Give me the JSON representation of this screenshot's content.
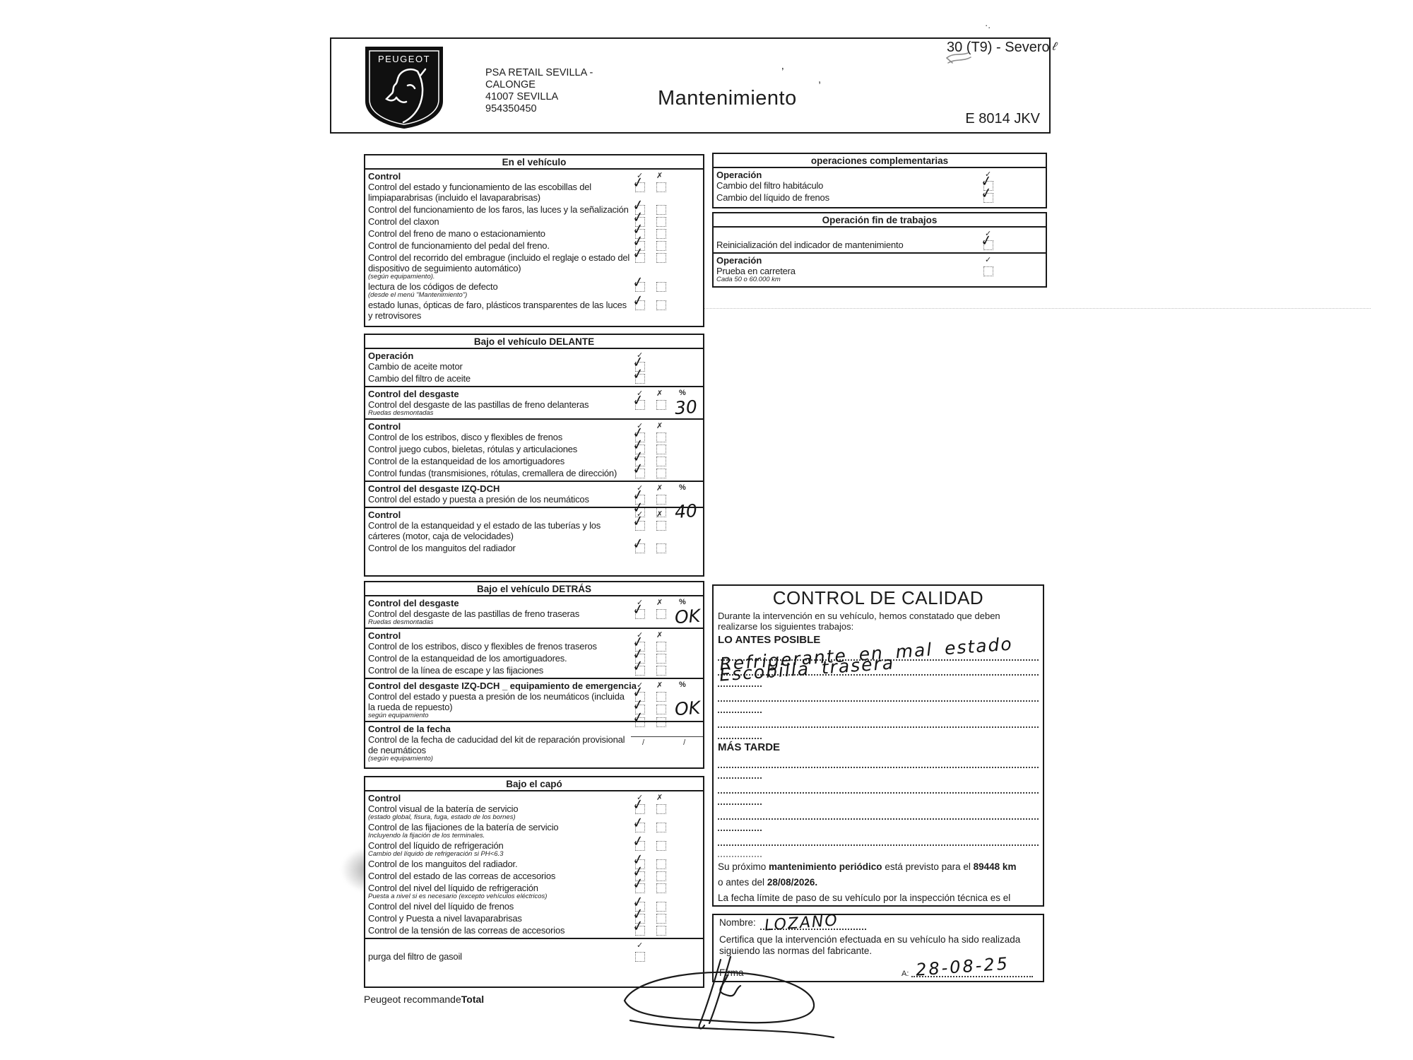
{
  "glyphs": {
    "check": "✓",
    "cross": "✗",
    "percent": "%",
    "mark": "✓"
  },
  "header": {
    "brand": "PEUGEOT",
    "dealer_lines": [
      "PSA RETAIL SEVILLA -",
      "CALONGE",
      "41007 SEVILLA",
      "954350450"
    ],
    "title": "Mantenimiento",
    "service_code": "30 (T9) - Severo",
    "plate": "E 8014 JKV"
  },
  "checklists": [
    {
      "title": "En el vehículo",
      "groups": [
        {
          "label": "Control",
          "cols": [
            "check",
            "cross"
          ],
          "rows": [
            {
              "text": "Control del estado y funcionamiento de las escobillas del limpiaparabrisas (incluido el lavaparabrisas)",
              "checks": [
                [
                  "checked",
                  "empty"
                ]
              ]
            },
            {
              "text": "Control del funcionamiento de los faros, las luces y la señalización",
              "checks": [
                [
                  "checked",
                  "empty"
                ]
              ]
            },
            {
              "text": "Control del claxon",
              "checks": [
                [
                  "checked",
                  "empty"
                ]
              ]
            },
            {
              "text": "Control del freno de mano o estacionamiento",
              "checks": [
                [
                  "checked",
                  "empty"
                ]
              ]
            },
            {
              "text": "Control de funcionamiento del pedal del freno.",
              "checks": [
                [
                  "checked",
                  "empty"
                ]
              ]
            },
            {
              "text": "Control del recorrido del embrague (incluido el reglaje o estado del dispositivo de seguimiento automático)",
              "note": "(según equipamiento).",
              "checks": [
                [
                  "checked",
                  "empty"
                ]
              ]
            },
            {
              "text": "lectura de los códigos de defecto",
              "note": "(desde el menú \"Mantenimiento\")",
              "checks": [
                [
                  "checked",
                  "empty"
                ]
              ]
            },
            {
              "text": "estado lunas, ópticas de faro, plásticos transparentes de las luces y retrovisores",
              "checks": [
                [
                  "checked",
                  "empty"
                ]
              ]
            }
          ]
        }
      ]
    },
    {
      "title": "Bajo el vehículo DELANTE",
      "groups": [
        {
          "label": "Operación",
          "cols": [
            "check"
          ],
          "rows": [
            {
              "text": "Cambio de aceite motor",
              "checks": [
                [
                  "checked"
                ]
              ]
            },
            {
              "text": "Cambio del filtro de aceite",
              "checks": [
                [
                  "checked"
                ]
              ]
            }
          ]
        },
        {
          "label": "Control del desgaste",
          "cols": [
            "check",
            "cross",
            "percent"
          ],
          "rows": [
            {
              "text": "Control del desgaste de las pastillas de freno delanteras",
              "note": "Ruedas desmontadas",
              "checks": [
                [
                  "checked",
                  "empty"
                ]
              ],
              "value": "30"
            }
          ]
        },
        {
          "label": "Control",
          "cols": [
            "check",
            "cross"
          ],
          "rows": [
            {
              "text": "Control de los estribos, disco y flexibles de frenos",
              "checks": [
                [
                  "checked",
                  "empty"
                ]
              ]
            },
            {
              "text": "Control juego cubos, bieletas, rótulas y articulaciones",
              "checks": [
                [
                  "checked",
                  "empty"
                ]
              ]
            },
            {
              "text": "Control de la estanqueidad de los amortiguadores",
              "checks": [
                [
                  "checked",
                  "empty"
                ]
              ]
            },
            {
              "text": "Control fundas (transmisiones, rótulas, cremallera de dirección)",
              "checks": [
                [
                  "checked",
                  "empty"
                ]
              ]
            }
          ]
        },
        {
          "label": "Control del desgaste IZQ-DCH",
          "cols": [
            "check",
            "cross",
            "percent"
          ],
          "rows": [
            {
              "text": "Control del estado y puesta a presión de los neumáticos",
              "checks": [
                [
                  "checked",
                  "empty"
                ],
                [
                  "checked",
                  "empty"
                ]
              ],
              "value": "40"
            }
          ]
        },
        {
          "label": "Control",
          "cols": [
            "check",
            "cross"
          ],
          "rows": [
            {
              "text": "Control de la estanqueidad y el estado de las tuberías y los cárteres (motor, caja de velocidades)",
              "checks": [
                [
                  "checked",
                  "empty"
                ]
              ]
            },
            {
              "text": "Control de los manguitos del radiador",
              "checks": [
                [
                  "checked",
                  "empty"
                ]
              ]
            }
          ]
        }
      ]
    },
    {
      "title": "Bajo el vehículo DETRÁS",
      "groups": [
        {
          "label": "Control del desgaste",
          "cols": [
            "check",
            "cross",
            "percent"
          ],
          "rows": [
            {
              "text": "Control del desgaste de las pastillas de freno traseras",
              "note": "Ruedas desmontadas",
              "checks": [
                [
                  "checked",
                  "empty"
                ]
              ],
              "value": "OK"
            }
          ]
        },
        {
          "label": "Control",
          "cols": [
            "check",
            "cross"
          ],
          "rows": [
            {
              "text": "Control de los estribos, disco y flexibles de frenos traseros",
              "checks": [
                [
                  "checked",
                  "empty"
                ]
              ]
            },
            {
              "text": "Control de la estanqueidad de los amortiguadores.",
              "checks": [
                [
                  "checked",
                  "empty"
                ]
              ]
            },
            {
              "text": "Control de la línea de escape y las fijaciones",
              "checks": [
                [
                  "checked",
                  "empty"
                ]
              ]
            }
          ]
        },
        {
          "label": "Control del desgaste IZQ-DCH _ equipamiento de emergencia",
          "cols": [
            "check",
            "cross",
            "percent"
          ],
          "rows": [
            {
              "text": "Control del estado y puesta a presión de los neumáticos (incluida la rueda de repuesto)",
              "note": "según equipamiento",
              "checks": [
                [
                  "checked",
                  "empty"
                ],
                [
                  "checked",
                  "empty"
                ],
                [
                  "checked",
                  "empty"
                ]
              ],
              "value": "OK"
            }
          ]
        },
        {
          "label": "Control de la fecha",
          "cols": [],
          "rows": [
            {
              "text": "Control de la fecha de caducidad del kit de reparación provisional de neumáticos",
              "note": "(según equipamiento)",
              "type": "date",
              "date_text": "/ /"
            }
          ]
        }
      ]
    },
    {
      "title": "Bajo el capó",
      "groups": [
        {
          "label": "Control",
          "cols": [
            "check",
            "cross"
          ],
          "rows": [
            {
              "text": "Control visual de la batería de servicio",
              "note": "(estado global, fisura, fuga, estado de los bornes)",
              "checks": [
                [
                  "checked",
                  "empty"
                ]
              ]
            },
            {
              "text": "Control de las fijaciones de la batería de servicio",
              "note": "Incluyendo la fijación de los terminales.",
              "checks": [
                [
                  "checked",
                  "empty"
                ]
              ]
            },
            {
              "text": "Control del líquido de refrigeración",
              "note": "Cambio del líquido de refrigeración si PH<6.3",
              "checks": [
                [
                  "checked",
                  "empty"
                ]
              ]
            },
            {
              "text": "Control de los manguitos del radiador.",
              "checks": [
                [
                  "checked",
                  "empty"
                ]
              ]
            },
            {
              "text": "Control del estado de las correas de accesorios",
              "checks": [
                [
                  "checked",
                  "empty"
                ]
              ]
            },
            {
              "text": "Control del nivel del líquido de refrigeración",
              "note": "Puesta a nivel si es necesario (excepto vehículos eléctricos)",
              "checks": [
                [
                  "checked",
                  "empty"
                ]
              ]
            },
            {
              "text": "Control del nivel del líquido de frenos",
              "checks": [
                [
                  "checked",
                  "empty"
                ]
              ]
            },
            {
              "text": "Control y Puesta a nivel lavaparabrisas",
              "checks": [
                [
                  "checked",
                  "empty"
                ]
              ]
            },
            {
              "text": "Control de la tensión de las correas de accesorios",
              "checks": [
                [
                  "checked",
                  "empty"
                ]
              ]
            }
          ]
        },
        {
          "label": "",
          "cols": [
            "check"
          ],
          "rows": [
            {
              "text": "purga del filtro de gasoil",
              "checks": [
                [
                  "empty"
                ]
              ]
            }
          ]
        }
      ]
    },
    {
      "title": "operaciones complementarias",
      "groups": [
        {
          "label": "Operación",
          "cols": [
            "check"
          ],
          "rows": [
            {
              "text": "Cambio del filtro habitáculo",
              "checks": [
                [
                  "checked"
                ]
              ]
            },
            {
              "text": "Cambio del líquido de frenos",
              "checks": [
                [
                  "checked"
                ]
              ]
            }
          ]
        }
      ]
    },
    {
      "title": "Operación fin de trabajos",
      "groups": [
        {
          "label": "",
          "cols": [
            "check"
          ],
          "rows": [
            {
              "text": "Reinicialización del indicador de mantenimiento",
              "checks": [
                [
                  "checked"
                ]
              ]
            }
          ]
        },
        {
          "label": "Operación",
          "cols": [
            "check"
          ],
          "rows": [
            {
              "text": "Prueba en carretera",
              "note": "Cada 50 o 60.000 km",
              "checks": [
                [
                  "empty"
                ]
              ]
            }
          ]
        }
      ]
    }
  ],
  "quality": {
    "title": "CONTROL DE CALIDAD",
    "intro": "Durante la intervención en su vehículo, hemos constatado que deben realizarse los siguientes trabajos:",
    "asap_label": "LO ANTES POSIBLE",
    "asap_notes": [
      "Refrigerante en mal estado",
      "Escobilla trasera"
    ],
    "later_label": "MÁS TARDE",
    "next": [
      "Su próximo ",
      "mantenimiento periódico",
      " está previsto para el ",
      "89448 km"
    ],
    "before": [
      "o antes del ",
      "28/08/2026."
    ],
    "itv": "La fecha límite de paso de su vehículo por la inspección técnica es el"
  },
  "certificate": {
    "name_label": "Nombre:",
    "name_value": "LOZANO",
    "text": "Certifica que la intervención efectuada en su vehículo ha sido realizada siguiendo las normas del fabricante.",
    "signature_label": "Firma",
    "date_label": "A:",
    "date_value": "28-08-25"
  },
  "footer": {
    "recommande": "Peugeot recommande",
    "total": "Total"
  }
}
